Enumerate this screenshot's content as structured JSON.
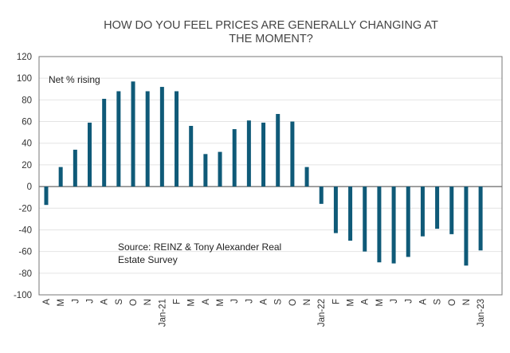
{
  "chart_data": {
    "type": "bar",
    "title_lines": [
      "HOW DO YOU FEEL PRICES ARE GENERALLY CHANGING AT",
      "THE MOMENT?"
    ],
    "series_label": "Net % rising",
    "annotation_lines": [
      "Source: REINZ & Tony Alexander  Real",
      "Estate Survey"
    ],
    "xlabel": "",
    "ylabel": "",
    "ylim": [
      -100,
      120
    ],
    "yticks": [
      120,
      100,
      80,
      60,
      40,
      20,
      0,
      -20,
      -40,
      -60,
      -80,
      -100
    ],
    "grid": true,
    "categories": [
      "A",
      "M",
      "J",
      "J",
      "A",
      "S",
      "O",
      "N",
      "Jan-21",
      "F",
      "M",
      "A",
      "M",
      "J",
      "J",
      "A",
      "S",
      "O",
      "N",
      "Jan-22",
      "F",
      "M",
      "A",
      "M",
      "J",
      "J",
      "A",
      "S",
      "O",
      "N",
      "Jan-23"
    ],
    "values": [
      -17,
      18,
      34,
      59,
      81,
      88,
      97,
      88,
      92,
      88,
      56,
      30,
      32,
      53,
      61,
      59,
      67,
      60,
      18,
      -16,
      -43,
      -50,
      -60,
      -70,
      -71,
      -65,
      -46,
      -39,
      -44,
      -73,
      -59
    ],
    "bar_color": "#0f5a78"
  }
}
